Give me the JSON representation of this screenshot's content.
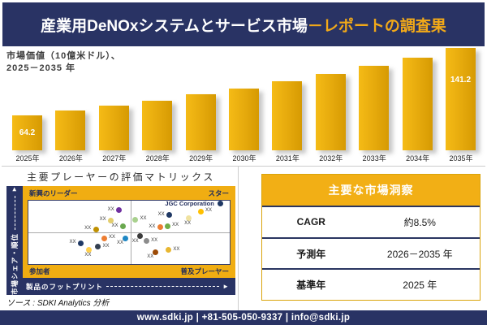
{
  "header": {
    "title_white": "産業用DeNOxシステムとサービス市場",
    "title_gold": "－レポートの調査果"
  },
  "chart_section": {
    "label_line1": "市場価値（10億米ドル）、",
    "label_line2": "2025－2035 年"
  },
  "chart_data": [
    {
      "type": "bar",
      "title": "市場価値（10億米ドル）、2025－2035 年",
      "xlabel": "年",
      "ylabel": "市場価値（10億米ドル）",
      "categories": [
        "2025年",
        "2026年",
        "2027年",
        "2028年",
        "2029年",
        "2030年",
        "2031年",
        "2032年",
        "2033年",
        "2034年",
        "2035年"
      ],
      "values": [
        64.2,
        69.5,
        75.2,
        81.3,
        88.0,
        95.2,
        103.0,
        111.5,
        120.6,
        130.5,
        141.2
      ],
      "value_labels": [
        {
          "index": 0,
          "text": "64.2"
        },
        {
          "index": 10,
          "text": "141.2"
        }
      ],
      "bar_color": "#E5A90C",
      "grid": false,
      "legend": false
    },
    {
      "type": "scatter",
      "title": "主要プレーヤーの評価マトリックス",
      "xlabel": "製品のフットプリント",
      "ylabel": "市場シェア・順位",
      "quadrants": {
        "top_left": "新興のリーダー",
        "top_right": "スター",
        "bottom_left": "参加者",
        "bottom_right": "普及プレーヤー"
      },
      "points": [
        {
          "x": 45,
          "y": 15,
          "color": "#7030A0",
          "label": "XX",
          "label_pos": "left"
        },
        {
          "x": 41,
          "y": 31,
          "color": "#E3CE6E",
          "label": "XX",
          "label_pos": "left"
        },
        {
          "x": 33.5,
          "y": 45,
          "color": "#BF9000",
          "label": "XX",
          "label_pos": "left"
        },
        {
          "x": 47,
          "y": 41,
          "color": "#6AA84F",
          "label": "XX",
          "label_pos": "left"
        },
        {
          "x": 53,
          "y": 29.5,
          "color": "#A9D18E",
          "label": "XX",
          "label_pos": "right"
        },
        {
          "x": 70,
          "y": 23,
          "color": "#1F3864",
          "label": "XX",
          "label_pos": "left"
        },
        {
          "x": 79.5,
          "y": 27,
          "color": "#F0E2A0",
          "label": "XX",
          "label_pos": "below"
        },
        {
          "x": 85.5,
          "y": 17,
          "color": "#FFC000",
          "label": "XX",
          "label_pos": "right"
        },
        {
          "x": 95.5,
          "y": 5,
          "color": "#1F3864",
          "label": "JGC Corporation",
          "label_pos": "company"
        },
        {
          "x": 65.5,
          "y": 42,
          "color": "#ED7D31",
          "label": "XX",
          "label_pos": "left"
        },
        {
          "x": 69,
          "y": 40,
          "color": "#70AD47",
          "label": "XX",
          "label_pos": "right"
        },
        {
          "x": 26,
          "y": 67,
          "color": "#1F3864",
          "label": "XX",
          "label_pos": "left"
        },
        {
          "x": 37.5,
          "y": 59,
          "color": "#ED7D31",
          "label": "XX",
          "label_pos": "right"
        },
        {
          "x": 34.5,
          "y": 73,
          "color": "#333F50",
          "label": "XX",
          "label_pos": "right"
        },
        {
          "x": 30,
          "y": 77,
          "color": "#FFD04D",
          "label": "XX",
          "label_pos": "below"
        },
        {
          "x": 48,
          "y": 59,
          "color": "#1F87C4",
          "label": "XX",
          "label_pos": "below-left"
        },
        {
          "x": 55.5,
          "y": 56,
          "color": "#3B3B3B",
          "label": "XX",
          "label_pos": "below-left"
        },
        {
          "x": 58.5,
          "y": 64,
          "color": "#8C8C8C",
          "label": "XX",
          "label_pos": "right"
        },
        {
          "x": 63,
          "y": 81,
          "color": "#9C4A06",
          "label": "XX",
          "label_pos": "below-left"
        },
        {
          "x": 69.5,
          "y": 78,
          "color": "#E8B732",
          "label": "XX",
          "label_pos": "right"
        }
      ]
    }
  ],
  "matrix": {
    "title": "主要プレーヤーの評価マトリックス",
    "quadrant_top_left": "新興のリーダー",
    "quadrant_top_right": "スター",
    "quadrant_bottom_left": "参加者",
    "quadrant_bottom_right": "普及プレーヤー",
    "y_axis_label": "市場シェア・順位",
    "x_axis_label": "製品のフットプリント",
    "arrow_glyph": "►"
  },
  "insights": {
    "title": "主要な市場洞察",
    "rows": [
      {
        "label": "CAGR",
        "value": "約8.5%"
      },
      {
        "label": "予測年",
        "value": "2026－2035 年"
      },
      {
        "label": "基準年",
        "value": "2025 年"
      }
    ]
  },
  "source": "ソース : SDKI Analytics 分析",
  "footer": "www.sdki.jp | +81-505-050-9337 | info@sdki.jp",
  "colors": {
    "navy": "#293364",
    "gold_accent": "#F2A918",
    "bar_gold": "#E5A90C",
    "matrix_gold": "#F0AD12",
    "table_header_gold": "#F2AF15",
    "table_border_gold": "#DAA40C",
    "divider_gray": "#CDCDCD"
  }
}
